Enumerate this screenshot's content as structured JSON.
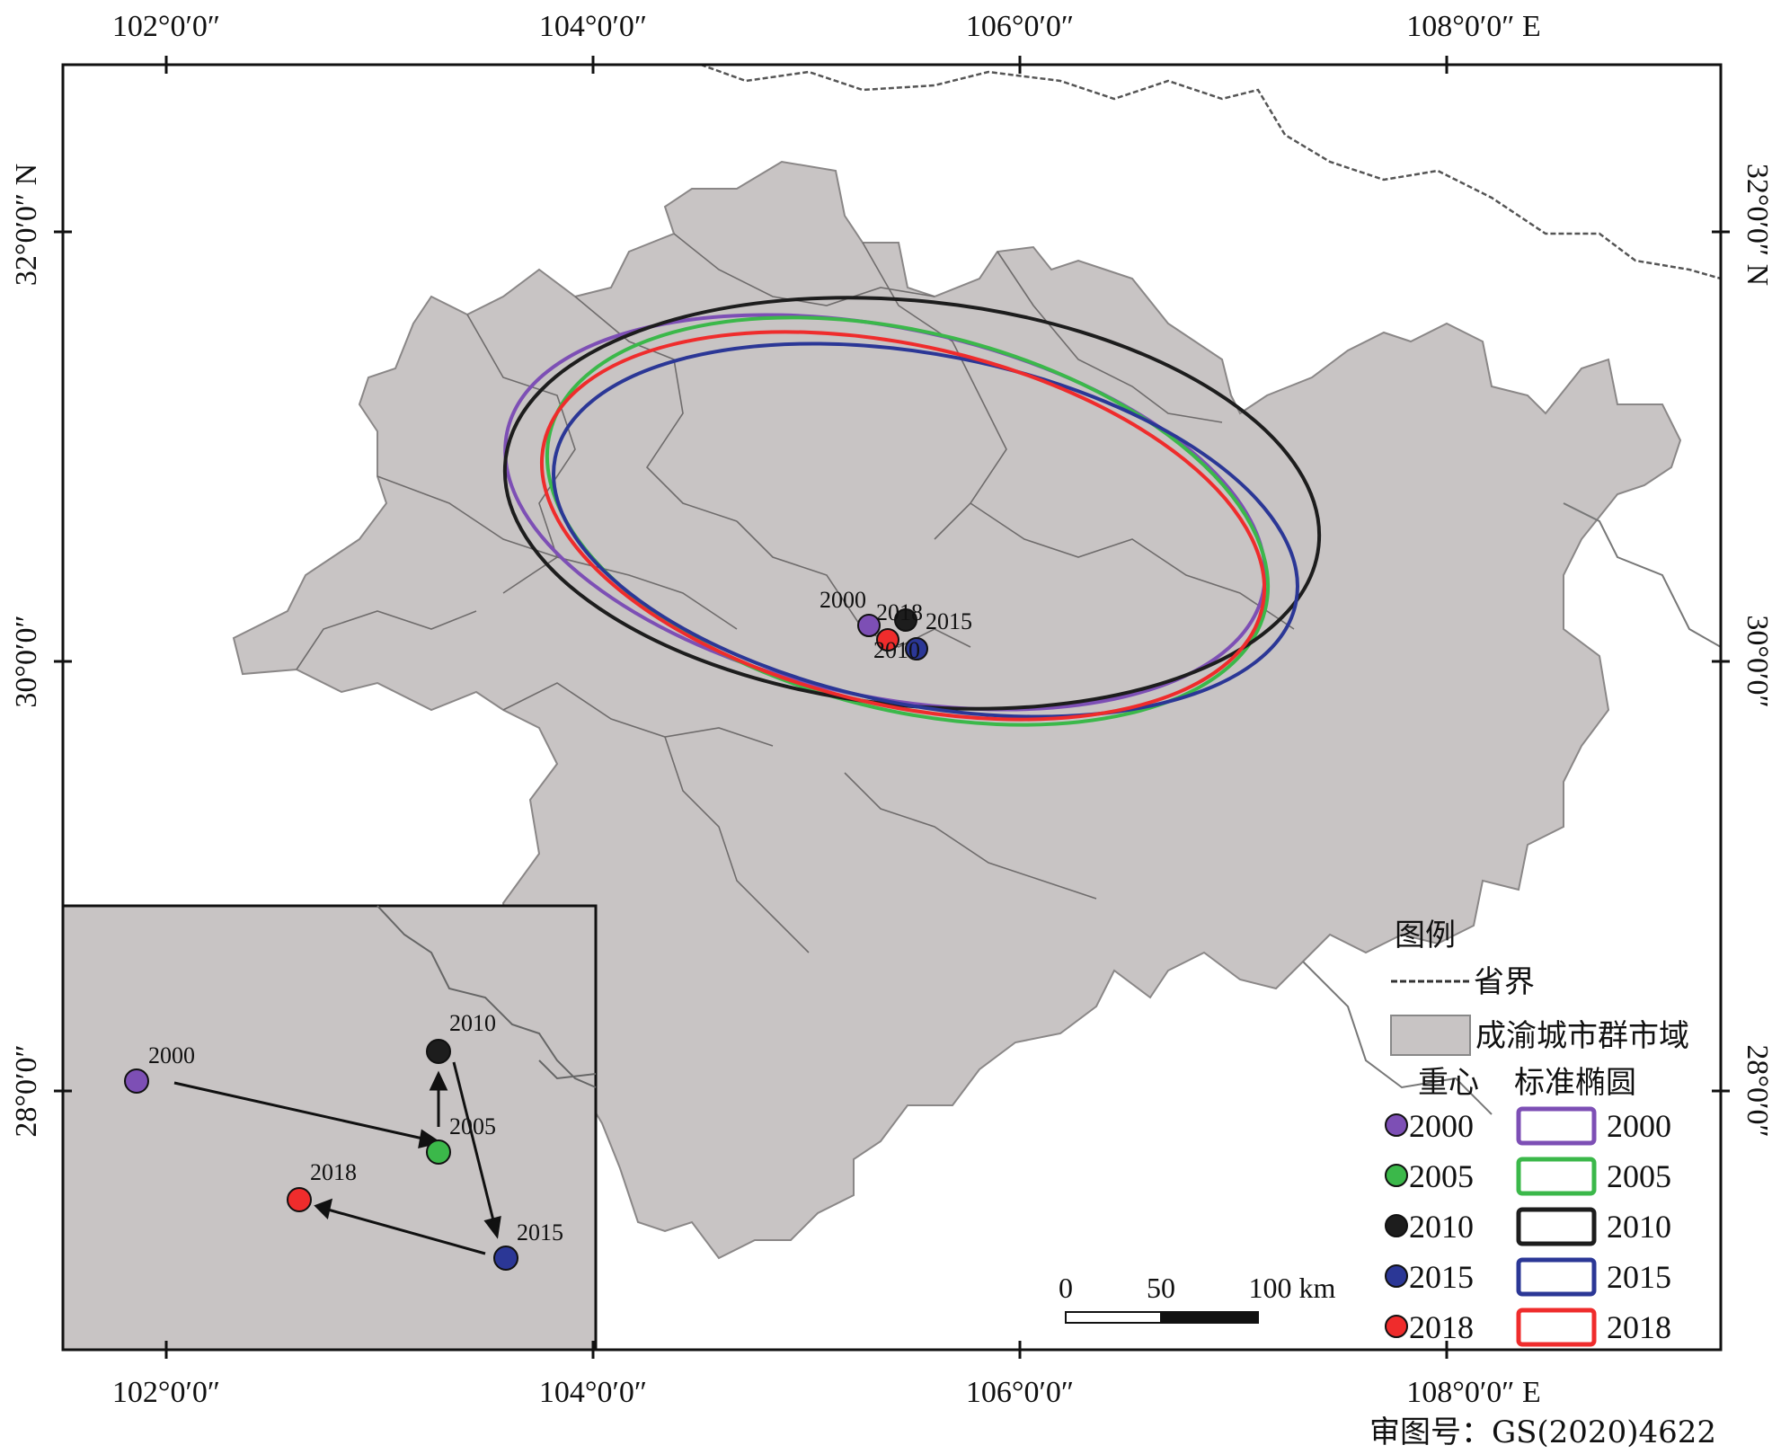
{
  "map": {
    "top_lon_labels": [
      "102°0′0″",
      "104°0′0″",
      "106°0′0″",
      "108°0′0″  E"
    ],
    "bottom_lon_labels": [
      "102°0′0″",
      "104°0′0″",
      "106°0′0″",
      "108°0′0″  E"
    ],
    "left_lat_labels": [
      "32°0′0″  N",
      "30°0′0″",
      "28°0′0″"
    ],
    "right_lat_labels": [
      "32°0′0″  N",
      "30°0′0″",
      "28°0′0″"
    ],
    "approval_number": "审图号：GS(2020)4622",
    "region_fill": "#c8c4c4",
    "background": "#ffffff"
  },
  "main_centroids": {
    "labels": [
      "2000",
      "2018",
      "2015",
      "2010"
    ]
  },
  "inset": {
    "labels": {
      "y2000": "2000",
      "y2005": "2005",
      "y2010": "2010",
      "y2015": "2015",
      "y2018": "2018"
    }
  },
  "legend": {
    "title": "图例",
    "boundary_label": "省界",
    "region_label": "成渝城市群市域",
    "centroid_header": "重心",
    "ellipse_header": "标准椭圆",
    "series": [
      {
        "year": "2000",
        "color": "#7d4fb5"
      },
      {
        "year": "2005",
        "color": "#3bb84a"
      },
      {
        "year": "2010",
        "color": "#1d1d1d"
      },
      {
        "year": "2015",
        "color": "#2b3796"
      },
      {
        "year": "2018",
        "color": "#ef2c2c"
      }
    ]
  },
  "scale_bar": {
    "labels": [
      "0",
      "50",
      "100 km"
    ]
  }
}
